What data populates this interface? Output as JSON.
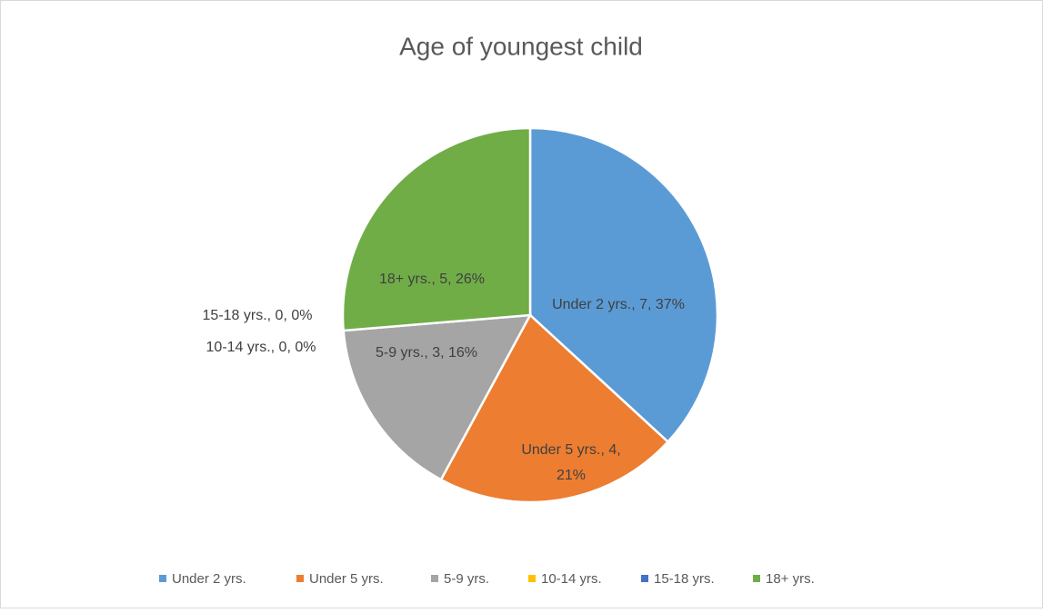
{
  "chart_data": {
    "type": "pie",
    "title": "Age of youngest child",
    "categories": [
      "Under 2 yrs.",
      "Under 5 yrs.",
      "5-9 yrs.",
      "10-14 yrs.",
      "15-18 yrs.",
      "18+ yrs."
    ],
    "values": [
      7,
      4,
      3,
      0,
      0,
      5
    ],
    "value_labels": [
      "Under 2 yrs., 7, 37%",
      "Under 5 yrs., 4, 21%",
      "5-9 yrs., 3, 16%",
      "10-14 yrs., 0, 0%",
      "15-18 yrs., 0, 0%",
      "18+ yrs., 5, 26%"
    ],
    "colors": [
      "#5b9bd5",
      "#ed7d31",
      "#a5a5a5",
      "#ffc000",
      "#4472c4",
      "#70ad47"
    ],
    "legend": "bottom"
  }
}
